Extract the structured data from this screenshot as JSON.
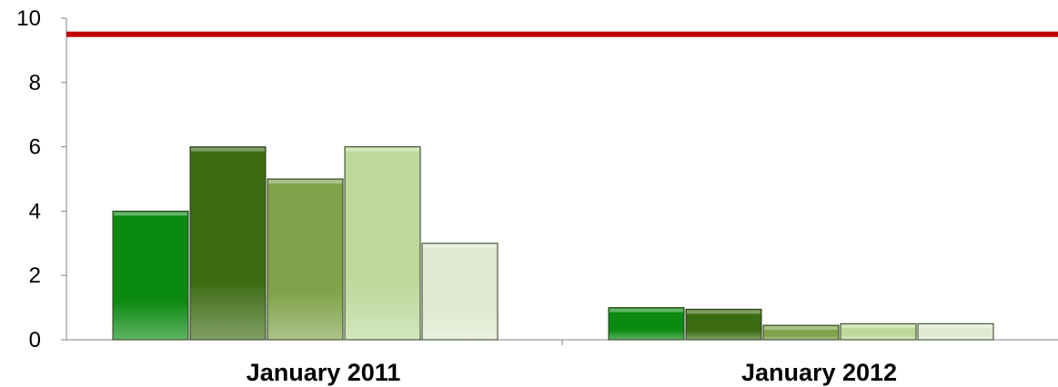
{
  "chart_data": {
    "type": "bar",
    "title": "",
    "xlabel": "",
    "ylabel": "",
    "ylim": [
      0,
      10
    ],
    "yticks": [
      "0",
      "2",
      "4",
      "6",
      "8",
      "10"
    ],
    "grid": false,
    "legend": "none",
    "categories": [
      "January 2011",
      "January 2012"
    ],
    "series": [
      {
        "values": [
          4.0,
          1.0
        ],
        "color": "#0b8a12"
      },
      {
        "values": [
          6.0,
          0.95
        ],
        "color": "#3d6b12"
      },
      {
        "values": [
          5.0,
          0.45
        ],
        "color": "#7fa24a"
      },
      {
        "values": [
          6.0,
          0.5
        ],
        "color": "#bcd99a"
      },
      {
        "values": [
          3.0,
          0.5
        ],
        "color": "#dfe9cf"
      }
    ],
    "reference_line": {
      "y": 9.5,
      "color": "#c00000"
    }
  }
}
